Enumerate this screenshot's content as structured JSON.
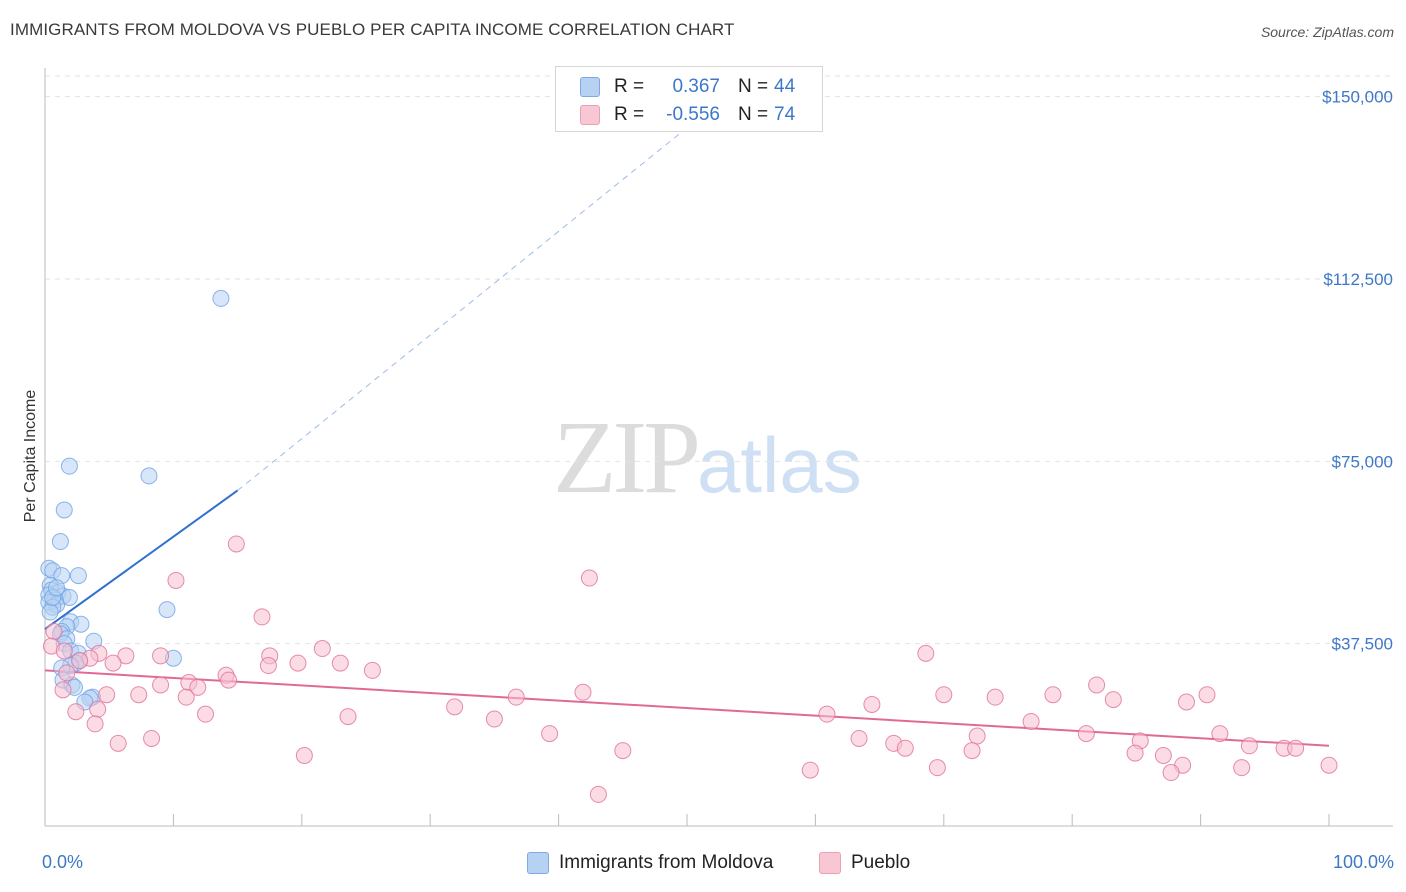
{
  "header": {
    "title": "IMMIGRANTS FROM MOLDOVA VS PUEBLO PER CAPITA INCOME CORRELATION CHART",
    "source": "Source: ZipAtlas.com"
  },
  "watermark": {
    "zip": "ZIP",
    "atlas": "atlas"
  },
  "legend": {
    "rows": [
      {
        "r_label": "R =",
        "r_value": "0.367",
        "n_label": "N =",
        "n_value": "44",
        "color": "#9fc3ee"
      },
      {
        "r_label": "R =",
        "r_value": "-0.556",
        "n_label": "N =",
        "n_value": "74",
        "color": "#f7b6c8"
      }
    ]
  },
  "bottom_legend": {
    "series1": "Immigrants from Moldova",
    "series2": "Pueblo"
  },
  "x_axis_labels": {
    "left": "0.0%",
    "right": "100.0%"
  },
  "chart_data": {
    "type": "scatter",
    "title": "IMMIGRANTS FROM MOLDOVA VS PUEBLO PER CAPITA INCOME CORRELATION CHART",
    "xlabel": "",
    "ylabel": "Per Capita Income",
    "xlim": [
      0,
      100
    ],
    "ylim": [
      0,
      160000
    ],
    "y_ticks": [
      37500,
      75000,
      112500,
      150000
    ],
    "y_tick_labels": [
      "$37,500",
      "$75,000",
      "$112,500",
      "$150,000"
    ],
    "x_tick_labels": [
      "0.0%",
      "100.0%"
    ],
    "grid": "horizontal dashed",
    "legend_position": "top-center",
    "series": [
      {
        "name": "Immigrants from Moldova",
        "color": "#6fa2e6",
        "fill": "#b7d1f3",
        "R": 0.367,
        "N": 44,
        "trend": {
          "x0": 0,
          "y0": 40500,
          "x1": 15,
          "y1": 69000,
          "dash_to_x": 53,
          "dash_to_y": 150000
        },
        "points": [
          [
            13.7,
            108500
          ],
          [
            1.9,
            74000
          ],
          [
            8.1,
            72000
          ],
          [
            1.5,
            65000
          ],
          [
            1.2,
            58500
          ],
          [
            0.3,
            53000
          ],
          [
            0.6,
            52500
          ],
          [
            1.3,
            51500
          ],
          [
            2.6,
            51500
          ],
          [
            0.4,
            49500
          ],
          [
            0.5,
            48500
          ],
          [
            1.0,
            48000
          ],
          [
            0.3,
            47500
          ],
          [
            1.4,
            47300
          ],
          [
            1.9,
            47000
          ],
          [
            0.8,
            46500
          ],
          [
            0.3,
            46000
          ],
          [
            0.9,
            45500
          ],
          [
            0.6,
            45000
          ],
          [
            0.4,
            44000
          ],
          [
            9.5,
            44500
          ],
          [
            2.0,
            42000
          ],
          [
            2.8,
            41500
          ],
          [
            1.7,
            41000
          ],
          [
            1.3,
            40000
          ],
          [
            1.2,
            39500
          ],
          [
            1.7,
            38500
          ],
          [
            3.8,
            38000
          ],
          [
            1.5,
            37500
          ],
          [
            2.0,
            36000
          ],
          [
            2.6,
            35500
          ],
          [
            10.0,
            34500
          ],
          [
            2.7,
            34000
          ],
          [
            2.4,
            33500
          ],
          [
            2.0,
            33000
          ],
          [
            1.3,
            32500
          ],
          [
            1.4,
            30000
          ],
          [
            2.1,
            29000
          ],
          [
            2.3,
            28500
          ],
          [
            3.7,
            26500
          ],
          [
            3.5,
            26300
          ],
          [
            3.1,
            25500
          ],
          [
            0.6,
            47000
          ],
          [
            0.9,
            49000
          ]
        ]
      },
      {
        "name": "Pueblo",
        "color": "#e07098",
        "fill": "#f7c0d0",
        "R": -0.556,
        "N": 74,
        "trend": {
          "x0": 0,
          "y0": 32000,
          "x1": 100,
          "y1": 16500
        },
        "points": [
          [
            14.9,
            58000
          ],
          [
            42.4,
            51000
          ],
          [
            10.2,
            50500
          ],
          [
            16.9,
            43000
          ],
          [
            0.7,
            40000
          ],
          [
            0.5,
            37000
          ],
          [
            21.6,
            36500
          ],
          [
            68.6,
            35500
          ],
          [
            1.5,
            36000
          ],
          [
            4.2,
            35500
          ],
          [
            6.3,
            35000
          ],
          [
            9.0,
            35000
          ],
          [
            17.5,
            35000
          ],
          [
            3.5,
            34500
          ],
          [
            2.7,
            34000
          ],
          [
            5.3,
            33500
          ],
          [
            19.7,
            33500
          ],
          [
            23.0,
            33500
          ],
          [
            17.4,
            33000
          ],
          [
            25.5,
            32000
          ],
          [
            1.7,
            31500
          ],
          [
            14.1,
            31000
          ],
          [
            14.3,
            30000
          ],
          [
            11.2,
            29500
          ],
          [
            9.0,
            29000
          ],
          [
            11.9,
            28500
          ],
          [
            1.4,
            28000
          ],
          [
            41.9,
            27500
          ],
          [
            4.8,
            27000
          ],
          [
            7.3,
            27000
          ],
          [
            70.0,
            27000
          ],
          [
            78.5,
            27000
          ],
          [
            90.5,
            27000
          ],
          [
            81.9,
            29000
          ],
          [
            83.2,
            26000
          ],
          [
            11.0,
            26500
          ],
          [
            36.7,
            26500
          ],
          [
            74.0,
            26500
          ],
          [
            88.9,
            25500
          ],
          [
            64.4,
            25000
          ],
          [
            31.9,
            24500
          ],
          [
            4.1,
            24000
          ],
          [
            2.4,
            23500
          ],
          [
            12.5,
            23000
          ],
          [
            60.9,
            23000
          ],
          [
            23.6,
            22500
          ],
          [
            35.0,
            22000
          ],
          [
            76.8,
            21500
          ],
          [
            3.9,
            21000
          ],
          [
            72.6,
            18500
          ],
          [
            81.1,
            19000
          ],
          [
            91.5,
            19000
          ],
          [
            39.3,
            19000
          ],
          [
            8.3,
            18000
          ],
          [
            63.4,
            18000
          ],
          [
            85.3,
            17500
          ],
          [
            66.1,
            17000
          ],
          [
            93.8,
            16500
          ],
          [
            67.0,
            16000
          ],
          [
            96.5,
            16000
          ],
          [
            97.4,
            16000
          ],
          [
            45.0,
            15500
          ],
          [
            72.2,
            15500
          ],
          [
            84.9,
            15000
          ],
          [
            87.1,
            14500
          ],
          [
            20.2,
            14500
          ],
          [
            5.7,
            17000
          ],
          [
            69.5,
            12000
          ],
          [
            59.6,
            11500
          ],
          [
            88.6,
            12500
          ],
          [
            87.7,
            11000
          ],
          [
            93.2,
            12000
          ],
          [
            100.0,
            12500
          ],
          [
            43.1,
            6500
          ]
        ]
      }
    ]
  }
}
